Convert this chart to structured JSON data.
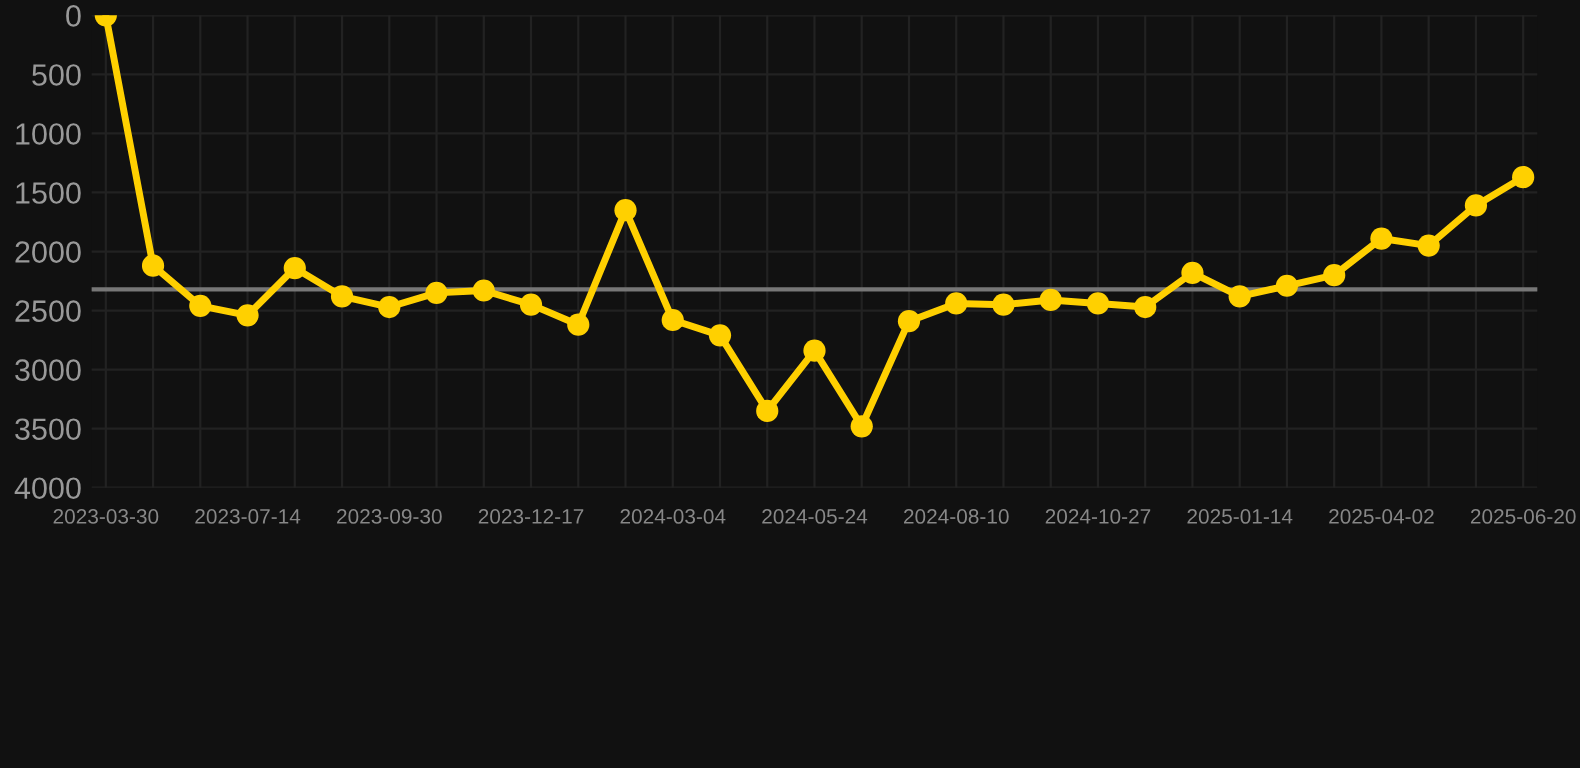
{
  "chart_data": {
    "type": "line",
    "categories": [
      "2023-03-30",
      null,
      null,
      "2023-07-14",
      null,
      null,
      "2023-09-30",
      null,
      null,
      "2023-12-17",
      null,
      null,
      "2024-03-04",
      null,
      null,
      "2024-05-24",
      null,
      null,
      "2024-08-10",
      null,
      null,
      "2024-10-27",
      null,
      null,
      "2025-01-14",
      null,
      null,
      "2025-04-02",
      null,
      null,
      "2025-06-20"
    ],
    "series": [
      {
        "color": "#ffd000",
        "values": [
          0,
          2120,
          2460,
          2540,
          2140,
          2380,
          2470,
          2350,
          2330,
          2450,
          2620,
          1650,
          2580,
          2710,
          3350,
          2840,
          3480,
          2590,
          2440,
          2450,
          2410,
          2440,
          2470,
          2180,
          2380,
          2290,
          2200,
          1890,
          1950,
          1610,
          1370
        ]
      }
    ],
    "ylim": [
      4000,
      0
    ],
    "yticks": [
      0,
      500,
      1000,
      1500,
      2000,
      2500,
      3000,
      3500,
      4000
    ],
    "ref_lines": [
      {
        "axis": "y",
        "value": 2320,
        "color": "#777777"
      }
    ],
    "grid": true,
    "marker": "circle",
    "line_style": "solid"
  }
}
